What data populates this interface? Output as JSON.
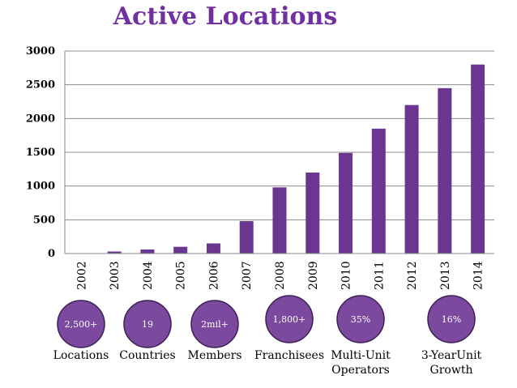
{
  "chart_data": {
    "type": "bar",
    "title": "Active Locations",
    "categories": [
      "2002",
      "2003",
      "2004",
      "2005",
      "2006",
      "2007",
      "2008",
      "2009",
      "2010",
      "2011",
      "2012",
      "2013",
      "2014"
    ],
    "values": [
      5,
      30,
      60,
      100,
      150,
      480,
      980,
      1200,
      1490,
      1850,
      2200,
      2450,
      2800
    ],
    "ylim": [
      0,
      3000
    ],
    "yticks": [
      0,
      500,
      1000,
      1500,
      2000,
      2500,
      3000
    ],
    "grid": true,
    "bar_color": "#6a3690"
  },
  "stats": [
    {
      "value": "2,500+",
      "label": [
        "Locations"
      ]
    },
    {
      "value": "19",
      "label": [
        "Countries"
      ]
    },
    {
      "value": "2mil+",
      "label": [
        "Members"
      ]
    },
    {
      "value": "1,800+",
      "label": [
        "Franchisees"
      ]
    },
    {
      "value": "35%",
      "label": [
        "Multi-Unit",
        "Operators"
      ]
    },
    {
      "value": "16%",
      "label": [
        "3-YearUnit",
        "Growth"
      ]
    }
  ],
  "colors": {
    "title": "#7030a0",
    "bubble_fill": "#7b4a9e",
    "bubble_stroke": "#3d1f55"
  }
}
